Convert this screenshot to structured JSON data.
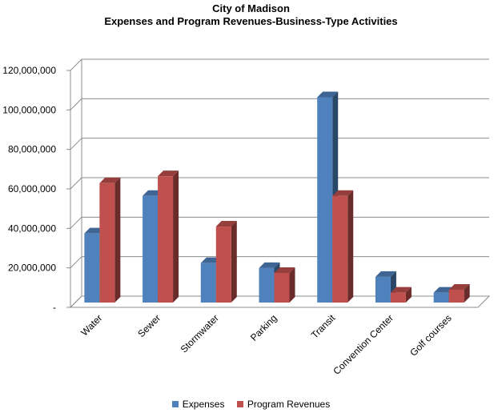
{
  "chart_data": {
    "type": "bar",
    "title": "City of Madison",
    "subtitle": "Expenses and Program Revenues-Business-Type Activities",
    "categories": [
      "Water",
      "Sewer",
      "Stormwater",
      "Parking",
      "Transit",
      "Convention Center",
      "Golf courses"
    ],
    "series": [
      {
        "name": "Expenses",
        "color": "#4F81BD",
        "values": [
          35000000,
          54000000,
          20000000,
          17500000,
          104000000,
          13000000,
          5000000
        ]
      },
      {
        "name": "Program Revenues",
        "color": "#C0504D",
        "values": [
          60500000,
          64000000,
          38500000,
          15000000,
          54000000,
          5000000,
          6500000
        ]
      }
    ],
    "ylim": [
      0,
      120000000
    ],
    "yticks": [
      "-",
      "20,000,000",
      "40,000,000",
      "60,000,000",
      "80,000,000",
      "100,000,000",
      "120,000,000"
    ],
    "grid": true,
    "three_d": true,
    "legend_position": "bottom"
  }
}
